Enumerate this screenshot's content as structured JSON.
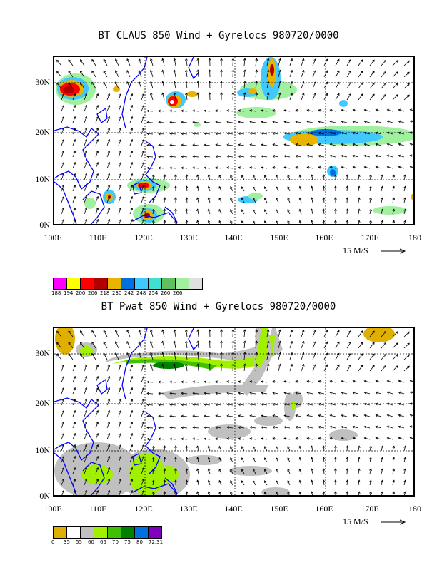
{
  "top": {
    "title": "BT CLAUS 850 Wind + Gyrelocs 980720/0000",
    "lat_labels": [
      "30N",
      "20N",
      "10N",
      "0N"
    ],
    "lon_labels": [
      "100E",
      "110E",
      "120E",
      "130E",
      "140E",
      "150E",
      "160E",
      "170E",
      "180"
    ],
    "scale_label": "15 M/S",
    "colorbar": {
      "colors": [
        "#ff00ff",
        "#ffff00",
        "#ff0000",
        "#b00000",
        "#e8b400",
        "#0070e0",
        "#40c8ff",
        "#40e0d0",
        "#60c060",
        "#a0f0a0",
        "#e0e0e0"
      ],
      "labels": [
        "188",
        "194",
        "200",
        "206",
        "218",
        "230",
        "242",
        "248",
        "254",
        "260",
        "266"
      ]
    }
  },
  "bottom": {
    "title": "BT Pwat 850 Wind + Gyrelocs 980720/0000",
    "lat_labels": [
      "30N",
      "20N",
      "10N",
      "0N"
    ],
    "lon_labels": [
      "100E",
      "110E",
      "120E",
      "130E",
      "140E",
      "150E",
      "160E",
      "170E",
      "180"
    ],
    "scale_label": "15 M/S",
    "colorbar": {
      "colors": [
        "#e0b000",
        "#ffffff",
        "#c0c0c0",
        "#a0f000",
        "#40c000",
        "#008000",
        "#0070e0",
        "#8000c0"
      ],
      "labels": [
        "0",
        "35",
        "55",
        "60",
        "65",
        "70",
        "75",
        "80",
        "72.31"
      ]
    }
  }
}
